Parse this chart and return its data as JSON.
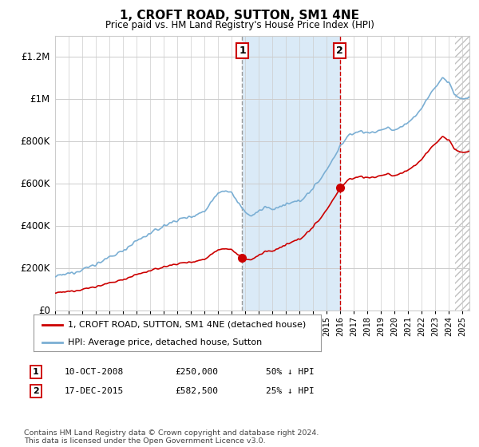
{
  "title": "1, CROFT ROAD, SUTTON, SM1 4NE",
  "subtitle": "Price paid vs. HM Land Registry's House Price Index (HPI)",
  "ylim": [
    0,
    1300000
  ],
  "yticks": [
    0,
    200000,
    400000,
    600000,
    800000,
    1000000,
    1200000
  ],
  "ytick_labels": [
    "£0",
    "£200K",
    "£400K",
    "£600K",
    "£800K",
    "£1M",
    "£1.2M"
  ],
  "hpi_color": "#7bafd4",
  "price_color": "#cc0000",
  "sale1_date": 2008.78,
  "sale1_price": 250000,
  "sale2_date": 2015.96,
  "sale2_price": 582500,
  "sale1_year_str": "10-OCT-2008",
  "sale1_hpi_pct": "50% ↓ HPI",
  "sale2_year_str": "17-DEC-2015",
  "sale2_hpi_pct": "25% ↓ HPI",
  "legend_line1": "1, CROFT ROAD, SUTTON, SM1 4NE (detached house)",
  "legend_line2": "HPI: Average price, detached house, Sutton",
  "footnote": "Contains HM Land Registry data © Crown copyright and database right 2024.\nThis data is licensed under the Open Government Licence v3.0.",
  "shade_color": "#daeaf7",
  "xmin": 1995.0,
  "xmax": 2025.5,
  "hatch_start": 2024.42
}
